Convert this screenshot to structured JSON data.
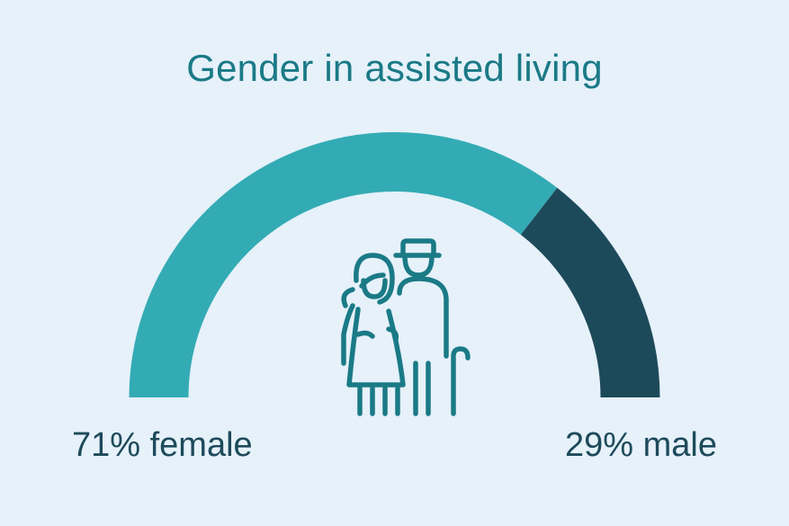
{
  "colors": {
    "background": "#e6f1fa",
    "female": "#33abb4",
    "male": "#1d4a5a",
    "title": "#1a7a86",
    "icon": "#1a7a86"
  },
  "icon": "elderly-couple-icon",
  "chart_data": {
    "type": "pie",
    "style": "semicircle-gauge",
    "title": "Gender in assisted living",
    "categories": [
      "female",
      "male"
    ],
    "values": [
      71,
      29
    ],
    "unit": "%",
    "labels": [
      "71% female",
      "29% male"
    ],
    "colors": [
      "#33abb4",
      "#1d4a5a"
    ]
  }
}
